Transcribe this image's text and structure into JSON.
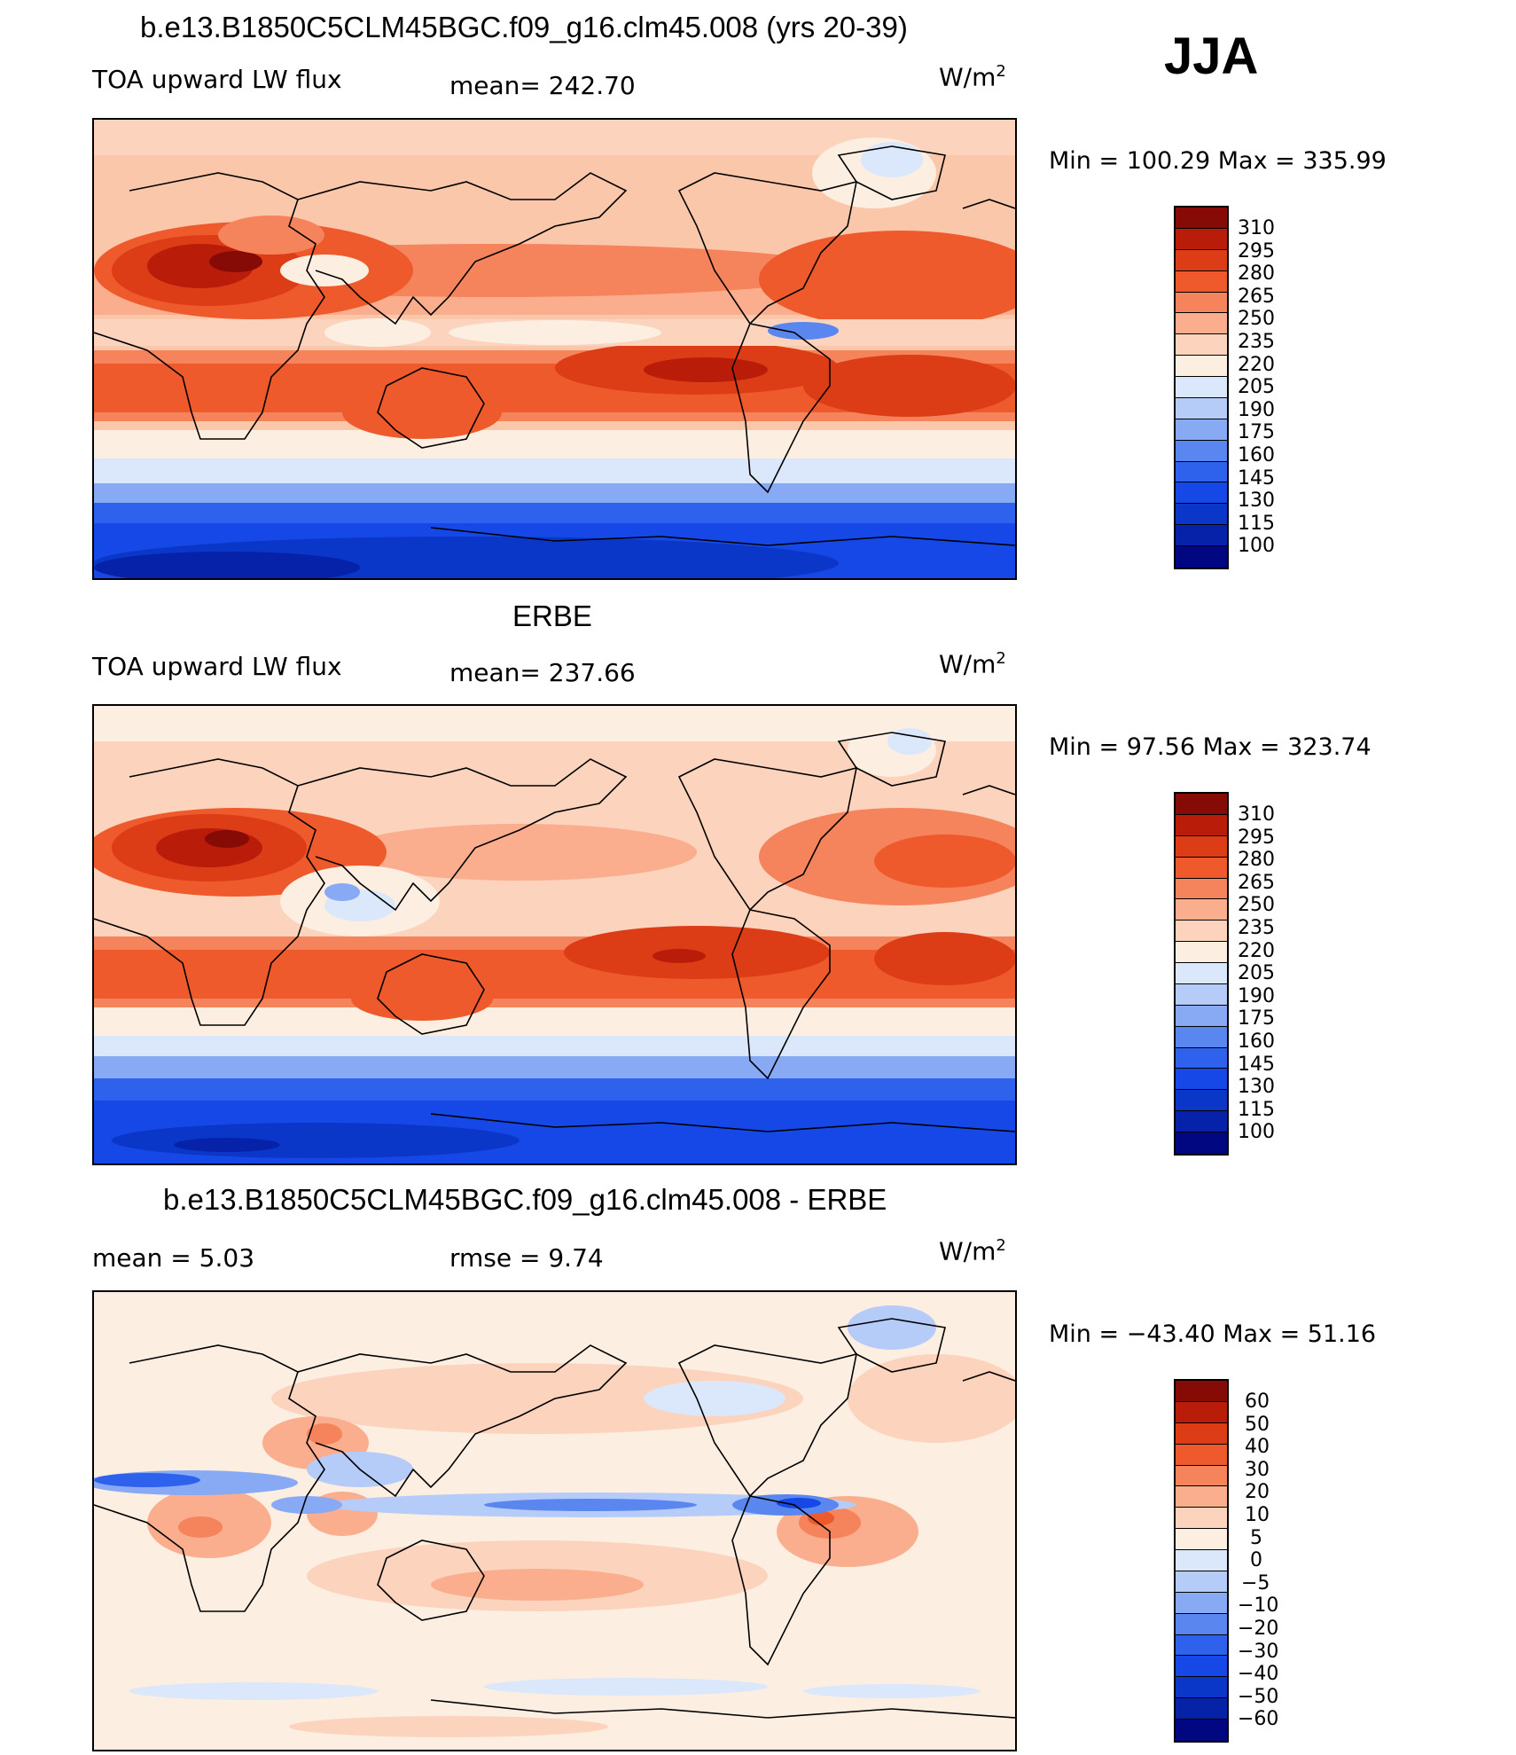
{
  "season": "JJA",
  "colors": {
    "abs": [
      "#010780",
      "#0522a8",
      "#0a37c7",
      "#1548e6",
      "#2f62ec",
      "#5a86f0",
      "#88a9f4",
      "#b5cbf8",
      "#dbe7fb",
      "#fdeee2",
      "#fcd3bc",
      "#faae8e",
      "#f5835b",
      "#ef5a2c",
      "#dc3c16",
      "#b91d0a",
      "#860a05"
    ],
    "diff": [
      "#010780",
      "#0522a8",
      "#0a37c7",
      "#1548e6",
      "#2f62ec",
      "#5a86f0",
      "#88a9f4",
      "#b5cbf8",
      "#dbe7fb",
      "#fdeee2",
      "#fcd3bc",
      "#faae8e",
      "#f5835b",
      "#ef5a2c",
      "#dc3c16",
      "#b91d0a",
      "#860a05"
    ]
  },
  "panels": [
    {
      "title": "b.e13.B1850C5CLM45BGC.f09_g16.clm45.008 (yrs 20-39)",
      "left_label": "TOA upward LW flux",
      "center_label": "mean= 242.70",
      "unit": "W/m",
      "unit_sup": "2",
      "minmax": "Min  =  100.29  Max  =  335.99",
      "levels": [
        "310",
        "295",
        "280",
        "265",
        "250",
        "235",
        "220",
        "205",
        "190",
        "175",
        "160",
        "145",
        "130",
        "115",
        "100"
      ]
    },
    {
      "title": "ERBE",
      "left_label": "TOA upward LW flux",
      "center_label": "mean= 237.66",
      "unit": "W/m",
      "unit_sup": "2",
      "minmax": "Min  =    97.56  Max  =  323.74",
      "levels": [
        "310",
        "295",
        "280",
        "265",
        "250",
        "235",
        "220",
        "205",
        "190",
        "175",
        "160",
        "145",
        "130",
        "115",
        "100"
      ]
    },
    {
      "title": "b.e13.B1850C5CLM45BGC.f09_g16.clm45.008 - ERBE",
      "left_label": "mean  =      5.03",
      "center_label": "rmse  =      9.74",
      "unit": "W/m",
      "unit_sup": "2",
      "minmax": "Min  =  −43.40  Max  =     51.16",
      "levels": [
        "60",
        "50",
        "40",
        "30",
        "20",
        "10",
        "5",
        "0",
        "−5",
        "−10",
        "−20",
        "−30",
        "−40",
        "−50",
        "−60"
      ]
    }
  ]
}
